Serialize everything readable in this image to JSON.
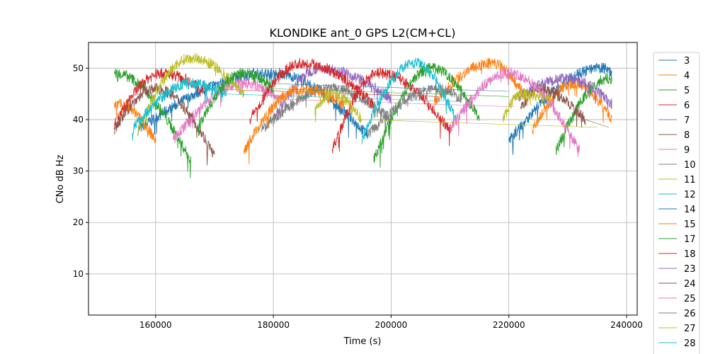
{
  "chart_data": {
    "type": "line",
    "title": "KLONDIKE ant_0 GPS L2(CM+CL)",
    "xlabel": "Time (s)",
    "ylabel": "CNo dB Hz",
    "xlim": [
      148600,
      241800
    ],
    "ylim": [
      2,
      55
    ],
    "xticks": [
      160000,
      180000,
      200000,
      220000,
      240000
    ],
    "yticks": [
      10,
      20,
      30,
      40,
      50
    ],
    "grid": true,
    "legend_placement": "right-outside",
    "series_passes_format": "[start_time, end_time, start_cno, peak_time, peak_cno, end_cno]",
    "series": [
      {
        "name": "3",
        "color": "#1f77b4",
        "passes": [
          [
            157000,
            180000,
            38,
            179000,
            49,
            47
          ],
          [
            179000,
            196000,
            49,
            180000,
            49,
            37
          ]
        ]
      },
      {
        "name": "4",
        "color": "#ff7f0e",
        "passes": [
          [
            153000,
            160000,
            43,
            153500,
            43,
            36
          ]
        ]
      },
      {
        "name": "5",
        "color": "#2ca02c",
        "passes": [
          [
            153000,
            166000,
            49,
            153000,
            49,
            32
          ]
        ]
      },
      {
        "name": "6",
        "color": "#d62728",
        "passes": [
          [
            153000,
            168000,
            39,
            161000,
            49,
            46
          ]
        ]
      },
      {
        "name": "7",
        "color": "#9467bd",
        "passes": [
          [
            180000,
            200000,
            40,
            188000,
            50,
            44
          ]
        ]
      },
      {
        "name": "8",
        "color": "#8c564b",
        "passes": [
          [
            153000,
            170000,
            38,
            160000,
            46,
            33
          ]
        ]
      },
      {
        "name": "9",
        "color": "#e377c2",
        "passes": [
          [
            163000,
            181000,
            36,
            175000,
            47,
            44
          ]
        ]
      },
      {
        "name": "10",
        "color": "#7f7f7f",
        "passes": [
          [
            178000,
            200000,
            38,
            190000,
            46,
            40
          ]
        ]
      },
      {
        "name": "11",
        "color": "#bcbd22",
        "passes": [
          [
            157000,
            175000,
            38,
            166000,
            52,
            45
          ]
        ]
      },
      {
        "name": "12",
        "color": "#17becf",
        "passes": [
          [
            156000,
            172000,
            38,
            166000,
            47,
            45
          ]
        ]
      },
      {
        "name": "14",
        "color": "#1f77b4",
        "passes": [
          [
            220000,
            237500,
            36,
            236000,
            50,
            49
          ]
        ]
      },
      {
        "name": "15",
        "color": "#ff7f0e",
        "passes": [
          [
            175000,
            192000,
            34,
            185000,
            46,
            43
          ],
          [
            207000,
            223000,
            43,
            217000,
            51,
            44
          ],
          [
            224000,
            237500,
            38,
            231000,
            47,
            40
          ]
        ]
      },
      {
        "name": "17",
        "color": "#2ca02c",
        "passes": [
          [
            167000,
            180000,
            38,
            175000,
            49,
            46
          ],
          [
            197000,
            215000,
            32,
            207000,
            50,
            40
          ],
          [
            228000,
            237500,
            34,
            237000,
            48,
            48
          ]
        ]
      },
      {
        "name": "18",
        "color": "#d62728",
        "passes": [
          [
            176000,
            197000,
            40,
            185000,
            51,
            43
          ],
          [
            190000,
            210000,
            34,
            198000,
            49,
            38
          ]
        ]
      },
      {
        "name": "23",
        "color": "#9467bd",
        "passes": [
          [
            221000,
            237500,
            44,
            230000,
            48,
            43
          ]
        ]
      },
      {
        "name": "24",
        "color": "#8c564b",
        "passes": [
          [
            222000,
            233000,
            42,
            225000,
            46,
            40
          ]
        ]
      },
      {
        "name": "25",
        "color": "#e377c2",
        "passes": [
          [
            210000,
            232000,
            38,
            220000,
            49,
            34
          ]
        ]
      },
      {
        "name": "26",
        "color": "#7f7f7f",
        "passes": [
          [
            196000,
            212000,
            37,
            208000,
            46,
            44
          ]
        ]
      },
      {
        "name": "27",
        "color": "#bcbd22",
        "passes": [
          [
            187000,
            195000,
            42,
            190000,
            45,
            40
          ],
          [
            219000,
            227000,
            40,
            222000,
            45,
            44
          ]
        ]
      },
      {
        "name": "28",
        "color": "#17becf",
        "passes": [
          [
            195000,
            211000,
            36,
            204000,
            51,
            40
          ]
        ]
      }
    ]
  }
}
